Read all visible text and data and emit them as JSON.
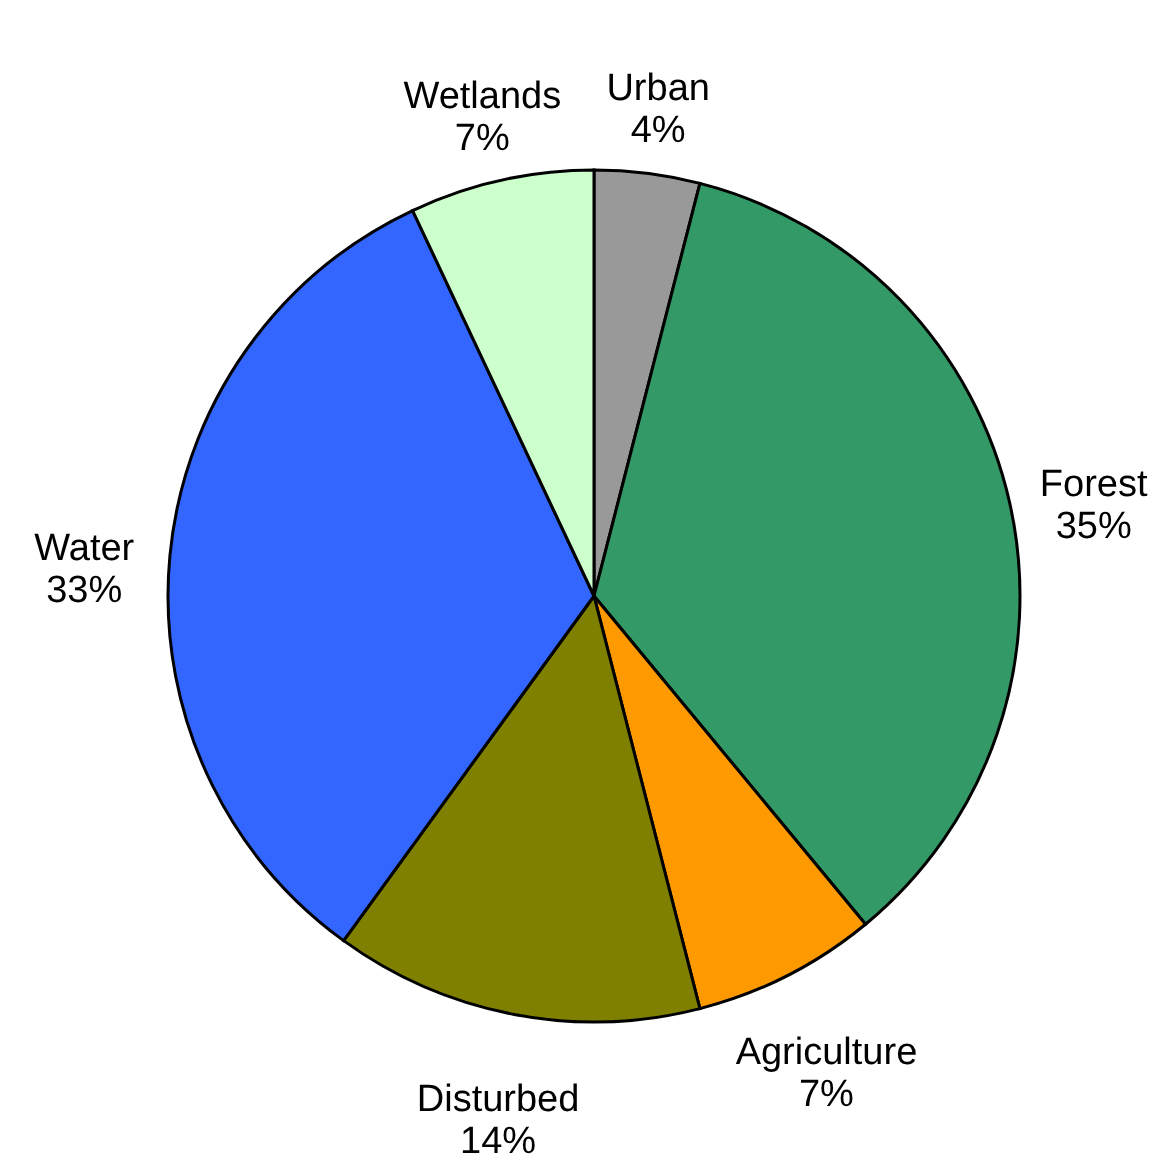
{
  "chart_data": {
    "type": "pie",
    "categories": [
      "Urban",
      "Forest",
      "Agriculture",
      "Disturbed",
      "Water",
      "Wetlands"
    ],
    "values": [
      4,
      35,
      7,
      14,
      33,
      7
    ],
    "value_labels": [
      "4%",
      "35%",
      "7%",
      "14%",
      "33%",
      "7%"
    ],
    "colors": [
      "#999999",
      "#339966",
      "#ff9900",
      "#808000",
      "#3366ff",
      "#ccffcc"
    ]
  }
}
